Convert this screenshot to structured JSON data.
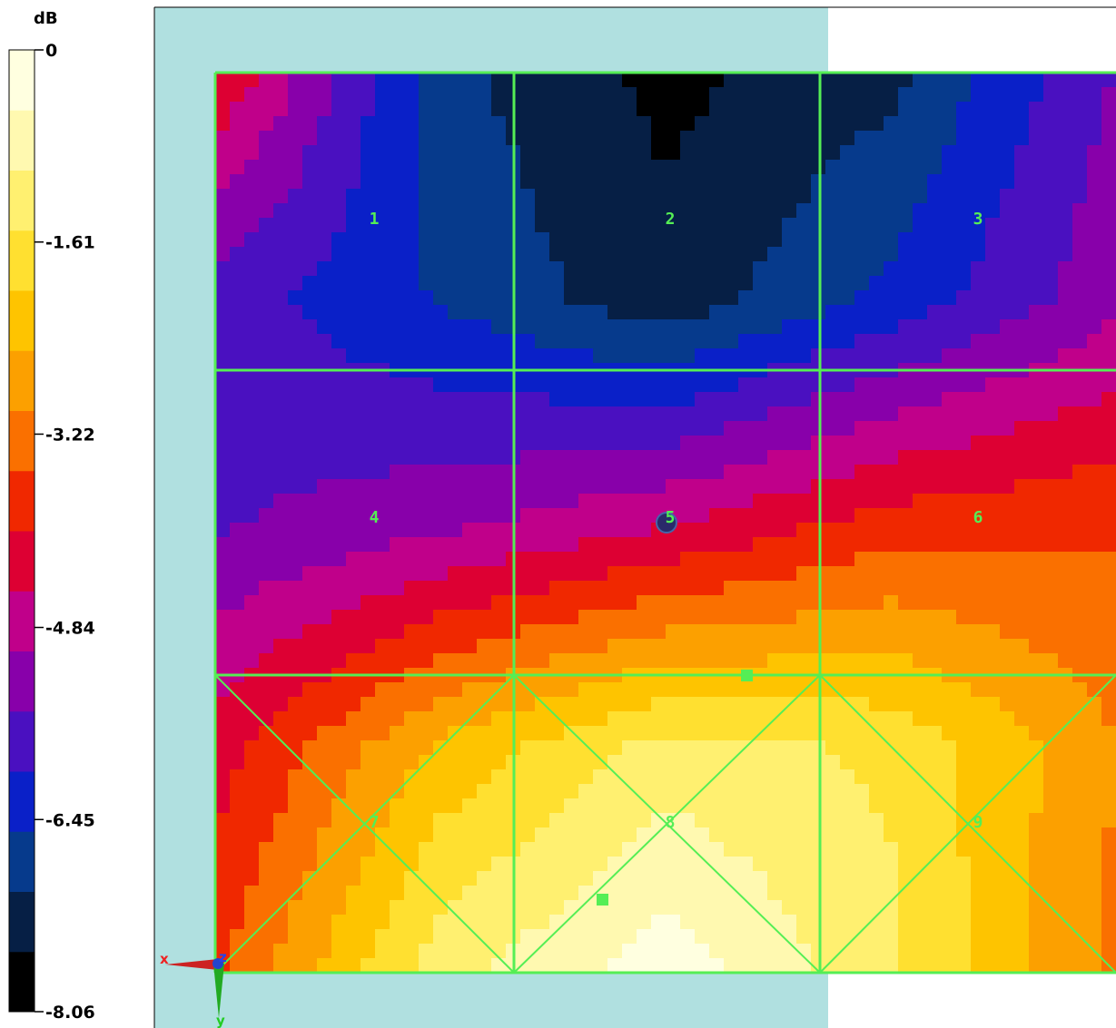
{
  "chart_data": {
    "type": "heatmap",
    "colorbar": {
      "unit": "dB",
      "range": [
        -8.06,
        0
      ],
      "tick_labels": [
        "0",
        "-1.61",
        "-3.22",
        "-4.84",
        "-6.45",
        "-8.06"
      ],
      "colors": [
        "#000000",
        "#061f45",
        "#063a8c",
        "#0a20c8",
        "#4a10c0",
        "#8800aa",
        "#c0008a",
        "#dd0033",
        "#f02800",
        "#fa7000",
        "#fca000",
        "#fec400",
        "#ffe030",
        "#fff070",
        "#fff9b0",
        "#ffffe0"
      ]
    },
    "grid": {
      "rows": 3,
      "cols": 3,
      "cell_labels": [
        "1",
        "2",
        "3",
        "4",
        "5",
        "6",
        "7",
        "8",
        "9"
      ],
      "line_color": "#55ee55"
    },
    "background": {
      "panel_color": "#b0e0e0"
    },
    "values": [
      [
        -4.0,
        -6.9,
        -7.7,
        -7.2,
        -5.5
      ],
      [
        -5.8,
        -6.6,
        -7.4,
        -6.4,
        -5.2
      ],
      [
        -5.6,
        -5.2,
        -4.6,
        -3.8,
        -3.6
      ],
      [
        -4.3,
        -2.4,
        -1.3,
        -1.6,
        -3.0
      ],
      [
        -3.6,
        -1.2,
        -0.2,
        -1.4,
        -3.2
      ]
    ],
    "axes_triad": [
      "x",
      "y",
      "z"
    ]
  }
}
